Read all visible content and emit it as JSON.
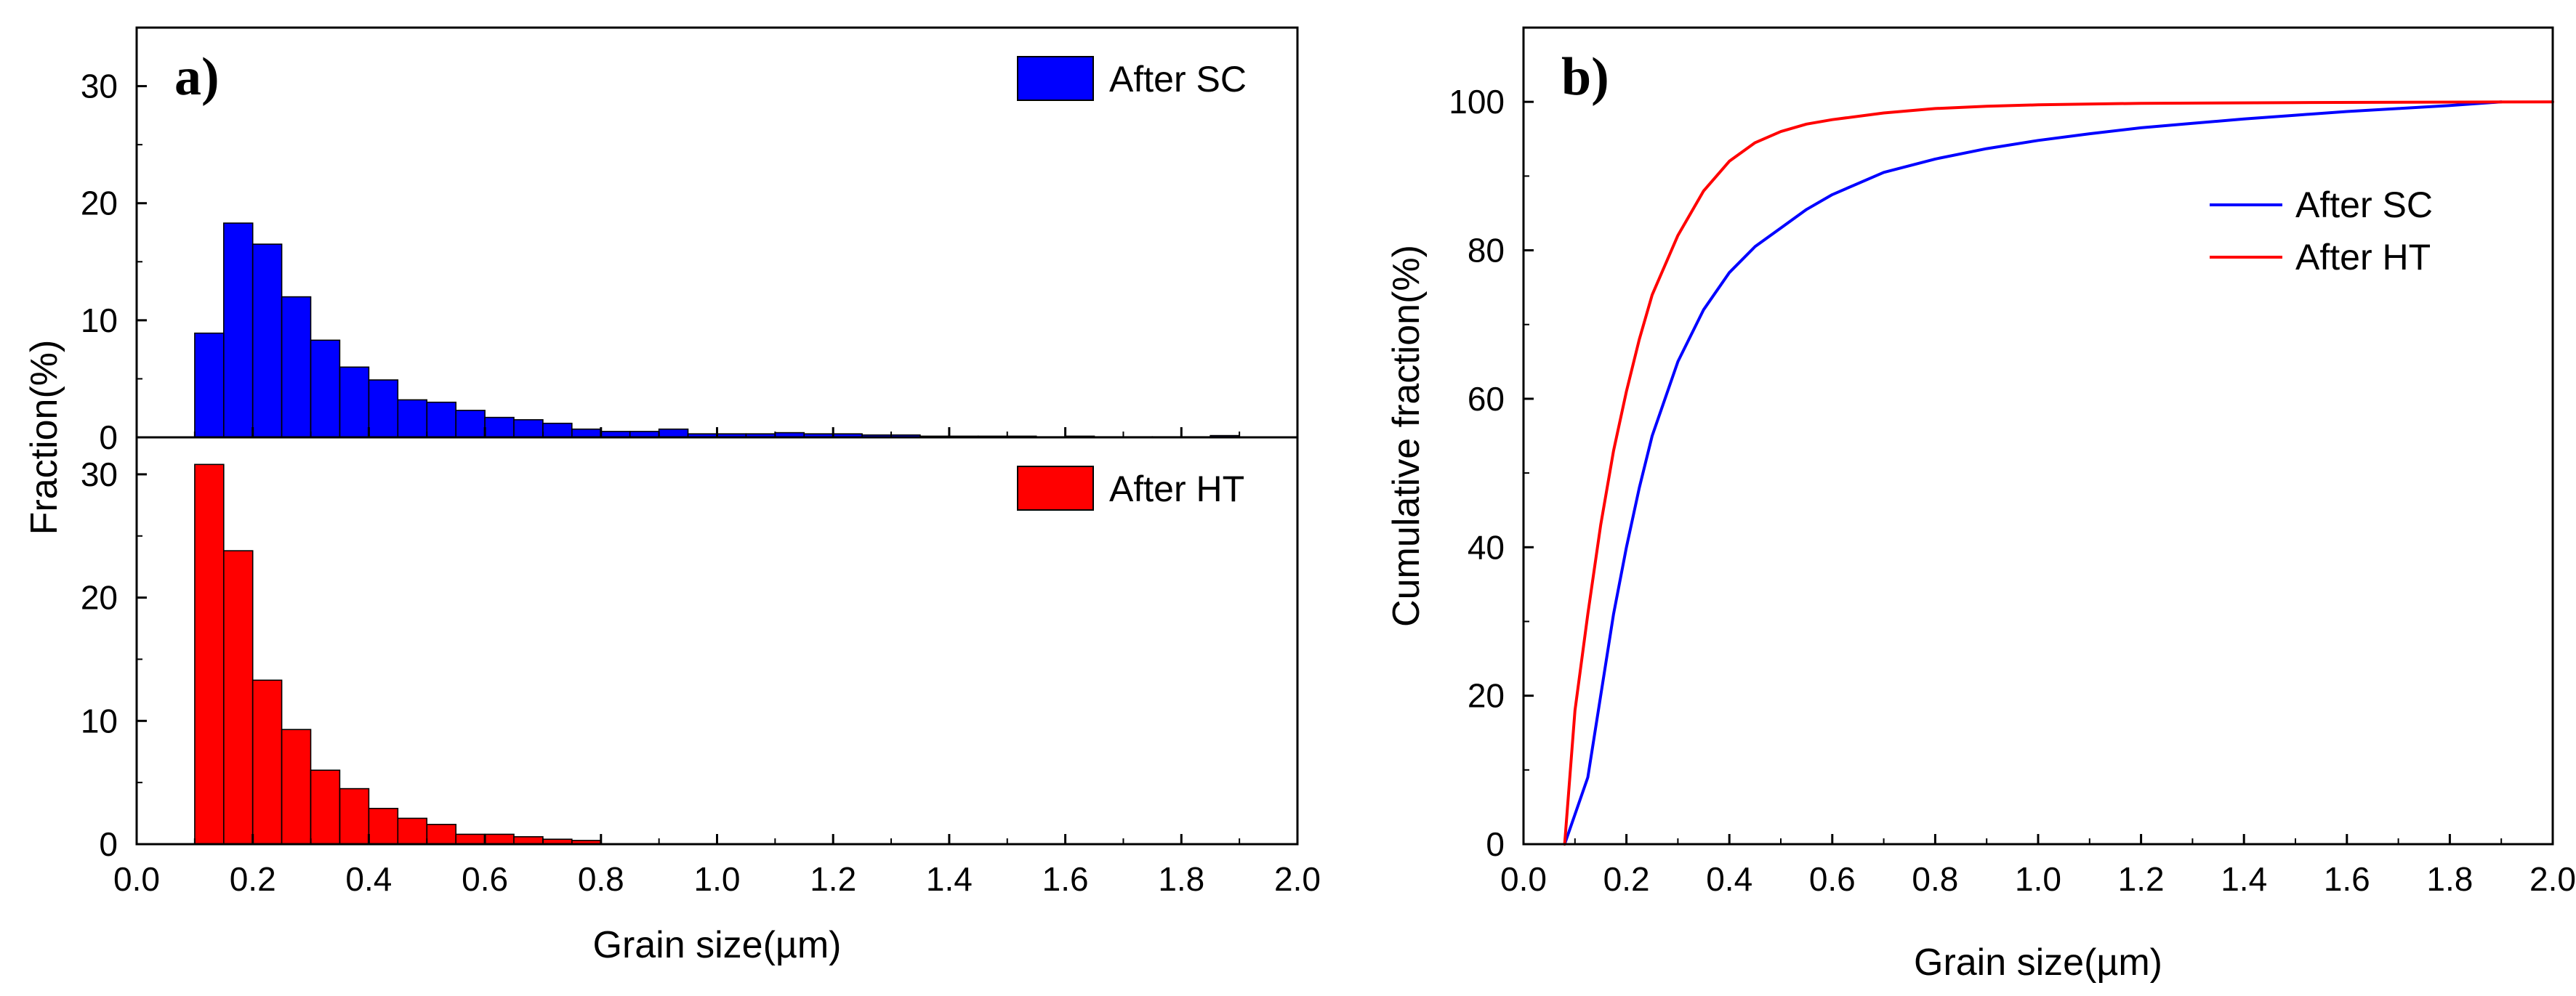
{
  "chart_data": [
    {
      "type": "bar",
      "panel_label": "a)",
      "ylabel": "Fraction(%)",
      "xlabel": "Grain size(µm)",
      "xlim": [
        0.0,
        2.0
      ],
      "xticks": [
        "0.0",
        "0.2",
        "0.4",
        "0.6",
        "0.8",
        "1.0",
        "1.2",
        "1.4",
        "1.6",
        "1.8",
        "2.0"
      ],
      "grid": false,
      "subplots": [
        {
          "legend": "After SC",
          "legend_position": "top-right",
          "color": "#0000ff",
          "ylim": [
            0,
            35
          ],
          "yticks": [
            "0",
            "10",
            "20",
            "30"
          ],
          "bin_width": 0.05,
          "x": [
            0.125,
            0.175,
            0.225,
            0.275,
            0.325,
            0.375,
            0.425,
            0.475,
            0.525,
            0.575,
            0.625,
            0.675,
            0.725,
            0.775,
            0.825,
            0.875,
            0.925,
            0.975,
            1.025,
            1.075,
            1.125,
            1.175,
            1.225,
            1.275,
            1.325,
            1.375,
            1.425,
            1.475,
            1.525,
            1.575,
            1.625,
            1.675,
            1.725,
            1.775,
            1.825,
            1.875
          ],
          "values": [
            8.9,
            18.3,
            16.5,
            12.0,
            8.3,
            6.0,
            4.9,
            3.2,
            3.0,
            2.3,
            1.7,
            1.5,
            1.2,
            0.7,
            0.5,
            0.5,
            0.7,
            0.3,
            0.3,
            0.3,
            0.4,
            0.3,
            0.3,
            0.2,
            0.2,
            0.1,
            0.1,
            0.1,
            0.1,
            0.05,
            0.1,
            0.05,
            0.05,
            0.05,
            0.05,
            0.15
          ]
        },
        {
          "legend": "After HT",
          "legend_position": "top-right",
          "color": "#ff0000",
          "ylim": [
            0,
            33
          ],
          "yticks": [
            "0",
            "10",
            "20",
            "30"
          ],
          "bin_width": 0.05,
          "x": [
            0.125,
            0.175,
            0.225,
            0.275,
            0.325,
            0.375,
            0.425,
            0.475,
            0.525,
            0.575,
            0.625,
            0.675,
            0.725,
            0.775
          ],
          "values": [
            30.8,
            23.8,
            13.3,
            9.3,
            6.0,
            4.5,
            2.9,
            2.1,
            1.6,
            0.8,
            0.8,
            0.6,
            0.4,
            0.3
          ]
        }
      ]
    },
    {
      "type": "line",
      "panel_label": "b)",
      "ylabel": "Cumulative fraction(%)",
      "xlabel": "Grain size(µm)",
      "xlim": [
        0.0,
        2.0
      ],
      "ylim": [
        0,
        110
      ],
      "xticks": [
        "0.0",
        "0.2",
        "0.4",
        "0.6",
        "0.8",
        "1.0",
        "1.2",
        "1.4",
        "1.6",
        "1.8",
        "2.0"
      ],
      "yticks": [
        "0",
        "20",
        "40",
        "60",
        "80",
        "100"
      ],
      "grid": false,
      "legend_position": "center-right",
      "series": [
        {
          "name": "After SC",
          "color": "#0000ff",
          "x": [
            0.08,
            0.1,
            0.125,
            0.15,
            0.175,
            0.2,
            0.225,
            0.25,
            0.3,
            0.35,
            0.4,
            0.45,
            0.5,
            0.55,
            0.6,
            0.7,
            0.8,
            0.9,
            1.0,
            1.1,
            1.2,
            1.3,
            1.4,
            1.5,
            1.6,
            1.7,
            1.8,
            1.9
          ],
          "values": [
            0,
            4,
            9,
            20,
            31,
            40,
            48,
            55,
            65,
            72,
            77,
            80.5,
            83,
            85.5,
            87.5,
            90.5,
            92.3,
            93.7,
            94.8,
            95.7,
            96.5,
            97.1,
            97.7,
            98.2,
            98.7,
            99.1,
            99.5,
            100
          ]
        },
        {
          "name": "After HT",
          "color": "#ff0000",
          "x": [
            0.08,
            0.1,
            0.125,
            0.15,
            0.175,
            0.2,
            0.225,
            0.25,
            0.3,
            0.35,
            0.4,
            0.45,
            0.5,
            0.55,
            0.6,
            0.7,
            0.8,
            0.9,
            1.0,
            1.2,
            1.5,
            2.0
          ],
          "values": [
            0,
            18,
            31,
            43,
            53,
            61,
            68,
            74,
            82,
            88,
            92,
            94.5,
            96,
            97,
            97.6,
            98.5,
            99.1,
            99.4,
            99.6,
            99.8,
            99.9,
            100
          ]
        }
      ]
    }
  ]
}
